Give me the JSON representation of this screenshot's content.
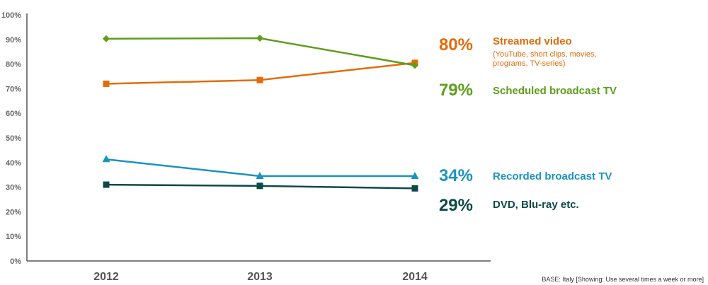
{
  "chart_data": {
    "type": "line",
    "categories": [
      "2012",
      "2013",
      "2014"
    ],
    "ylim": [
      0,
      100
    ],
    "yticks": [
      "0%",
      "10%",
      "20%",
      "30%",
      "40%",
      "50%",
      "60%",
      "70%",
      "80%",
      "90%",
      "100%"
    ],
    "grid": false,
    "series": [
      {
        "name": "Streamed video",
        "note": "(YouTube, short clips, movies, programs, TV-series)",
        "values": [
          72,
          73.5,
          80.5
        ],
        "end_label": "80%",
        "color": "#E36C0A",
        "marker": "square"
      },
      {
        "name": "Scheduled broadcast TV",
        "note": "",
        "values": [
          90.3,
          90.5,
          79.5
        ],
        "end_label": "79%",
        "color": "#5D9E1A",
        "marker": "diamond"
      },
      {
        "name": "Recorded broadcast TV",
        "note": "",
        "values": [
          41.3,
          34.5,
          34.5
        ],
        "end_label": "34%",
        "color": "#1B93C0",
        "marker": "triangle"
      },
      {
        "name": "DVD, Blu-ray etc.",
        "note": "",
        "values": [
          31,
          30.5,
          29.5
        ],
        "end_label": "29%",
        "color": "#0E4A45",
        "marker": "square"
      }
    ],
    "footnote": "BASE: Italy [Showing: Use several times a week or more]"
  }
}
